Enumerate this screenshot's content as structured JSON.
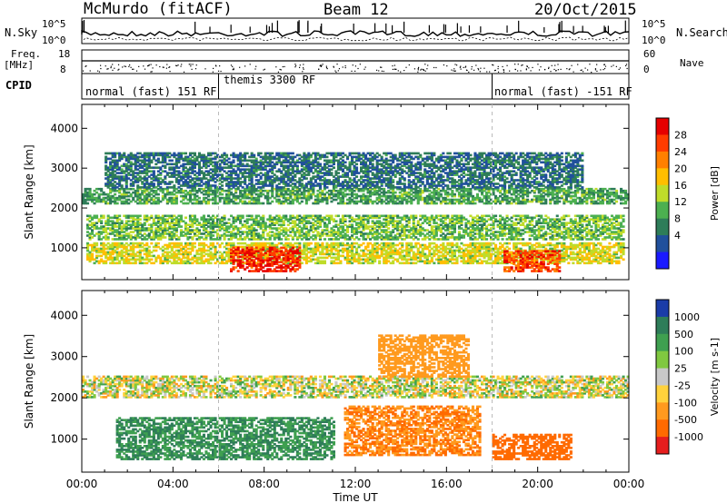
{
  "header": {
    "title": "McMurdo (fitACF)",
    "beam": "Beam 12",
    "date": "20/Oct/2015"
  },
  "summary_panel": {
    "nsky_label": "N.Sky",
    "nsearch_label": "N.Search",
    "nsky_ticks": [
      "10^5",
      "10^0"
    ],
    "nsearch_ticks": [
      "10^5",
      "10^0"
    ],
    "freq_label": "Freq.",
    "freq_unit": "[MHz]",
    "freq_ticks": [
      "18",
      "8"
    ],
    "nave_label": "Nave",
    "nave_ticks": [
      "60",
      "0"
    ],
    "cpid_label": "CPID",
    "cpid_segments": [
      "normal (fast) 151 RF",
      "themis 3300 RF",
      "normal (fast) -151 RF"
    ],
    "cpid_boundaries_hours": [
      6.0,
      18.0
    ]
  },
  "chart_data": [
    {
      "type": "heatmap",
      "name": "power",
      "xlabel": "Time UT",
      "ylabel": "Slant Range [km]",
      "xlim": [
        0,
        24
      ],
      "ylim": [
        200,
        4600
      ],
      "yticks": [
        "1000",
        "2000",
        "3000",
        "4000"
      ],
      "colorbar_label": "Power [dB]",
      "colorbar_ticks": [
        "28",
        "24",
        "20",
        "16",
        "12",
        "8",
        "4"
      ],
      "colorbar_colors": [
        "#e60000",
        "#ff3c00",
        "#ff8000",
        "#ffbe00",
        "#bfdc2a",
        "#4cb050",
        "#2e7d59",
        "#20509c",
        "#1a1aff"
      ],
      "colorbar_range": [
        0,
        30
      ],
      "bands": [
        {
          "range_km": [
            600,
            1100
          ],
          "hours": [
            0.2,
            23.8
          ],
          "level": 16
        },
        {
          "range_km": [
            400,
            1000
          ],
          "hours": [
            6.5,
            9.5
          ],
          "level": 28
        },
        {
          "range_km": [
            400,
            900
          ],
          "hours": [
            18.5,
            21.0
          ],
          "level": 26
        },
        {
          "range_km": [
            1200,
            1800
          ],
          "hours": [
            0.2,
            23.8
          ],
          "level": 12
        },
        {
          "range_km": [
            2100,
            2500
          ],
          "hours": [
            0.0,
            24.0
          ],
          "level": 10
        },
        {
          "range_km": [
            2500,
            3400
          ],
          "hours": [
            1.0,
            22.0
          ],
          "level": 6
        }
      ]
    },
    {
      "type": "heatmap",
      "name": "velocity",
      "xlabel": "Time UT",
      "ylabel": "Slant Range [km]",
      "xlim": [
        0,
        24
      ],
      "ylim": [
        200,
        4600
      ],
      "yticks": [
        "1000",
        "2000",
        "3000",
        "4000"
      ],
      "xticks": [
        "00:00",
        "04:00",
        "08:00",
        "12:00",
        "16:00",
        "20:00",
        "00:00"
      ],
      "colorbar_label": "Velocity [m s-1]",
      "colorbar_ticks": [
        "1000",
        "500",
        "100",
        "25",
        "-25",
        "-100",
        "-500",
        "-1000"
      ],
      "colorbar_colors": [
        "#1a3ca8",
        "#2e7d59",
        "#3fa050",
        "#80c840",
        "#c8c8c8",
        "#ffd23c",
        "#ff9a1e",
        "#ff6a00",
        "#e61e1e"
      ],
      "bands": [
        {
          "range_km": [
            500,
            1500
          ],
          "hours": [
            1.5,
            11.0
          ],
          "level": 500
        },
        {
          "range_km": [
            600,
            1800
          ],
          "hours": [
            11.5,
            17.5
          ],
          "level": -500
        },
        {
          "range_km": [
            500,
            1100
          ],
          "hours": [
            18.0,
            21.5
          ],
          "level": -700
        },
        {
          "range_km": [
            2000,
            2500
          ],
          "hours": [
            0.0,
            24.0
          ],
          "level": 0
        },
        {
          "range_km": [
            2500,
            3500
          ],
          "hours": [
            13.0,
            17.0
          ],
          "level": -300
        }
      ]
    }
  ]
}
